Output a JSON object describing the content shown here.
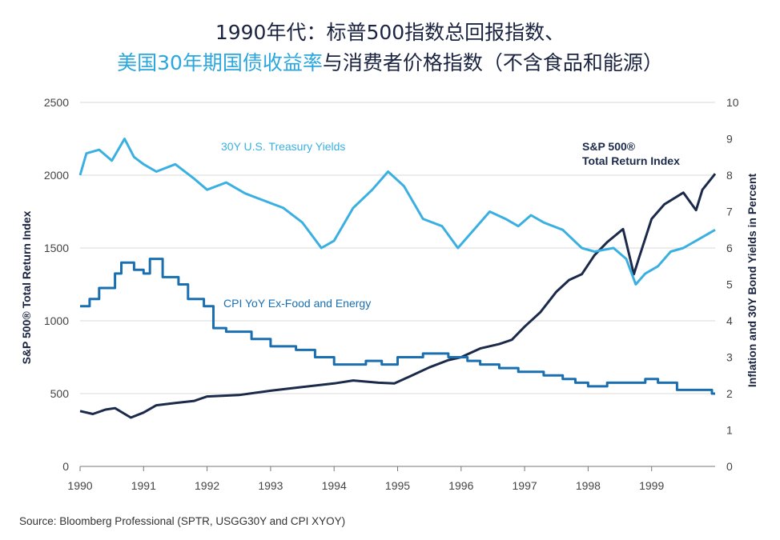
{
  "title_line1": "1990年代：标普500指数总回报指数、",
  "title_line2_highlight": "美国30年期国债收益率",
  "title_line2_rest": "与消费者价格指数（不含食品和能源）",
  "source": "Source: Bloomberg Professional (SPTR, USGG30Y and CPI XYOY)",
  "chart_data": {
    "type": "line",
    "x_label": "",
    "x_ticks": [
      "1990",
      "1991",
      "1992",
      "1993",
      "1994",
      "1995",
      "1996",
      "1997",
      "1998",
      "1999"
    ],
    "xlim": [
      1990,
      2000
    ],
    "y_left_label": "S&P 500® Total Return Index",
    "y_left_ticks": [
      "0",
      "500",
      "1000",
      "1500",
      "2000",
      "2500"
    ],
    "y_left_lim": [
      0,
      2500
    ],
    "y_right_label": "Inflation and 30Y Bond Yields in Percent",
    "y_right_ticks": [
      "0",
      "1",
      "2",
      "3",
      "4",
      "5",
      "6",
      "7",
      "8",
      "9",
      "10"
    ],
    "y_right_lim": [
      0,
      10
    ],
    "grid": "horizontal",
    "colors": {
      "sp500": "#1b2a4a",
      "treasury": "#3ab0e2",
      "cpi": "#1a6fb0",
      "grid": "#d9d9d9",
      "title": "#1a2340",
      "highlight": "#2aa7de"
    },
    "annotations": {
      "treasury": "30Y U.S. Treasury Yields",
      "cpi": "CPI YoY Ex-Food and Energy",
      "sp500_line1": "S&P 500®",
      "sp500_line2": "Total Return Index"
    },
    "series": [
      {
        "name": "S&P 500® Total Return Index",
        "axis": "left",
        "x": [
          1990.0,
          1990.2,
          1990.4,
          1990.55,
          1990.8,
          1991.0,
          1991.2,
          1991.5,
          1991.8,
          1992.0,
          1992.5,
          1993.0,
          1993.5,
          1994.0,
          1994.3,
          1994.7,
          1994.95,
          1995.2,
          1995.5,
          1995.8,
          1996.0,
          1996.3,
          1996.6,
          1996.8,
          1997.0,
          1997.25,
          1997.5,
          1997.7,
          1997.9,
          1998.1,
          1998.3,
          1998.55,
          1998.72,
          1998.8,
          1999.0,
          1999.2,
          1999.5,
          1999.7,
          1999.8,
          2000.0
        ],
        "y": [
          380,
          360,
          390,
          400,
          335,
          370,
          420,
          435,
          450,
          480,
          490,
          520,
          545,
          570,
          590,
          575,
          570,
          620,
          680,
          730,
          750,
          810,
          840,
          870,
          960,
          1060,
          1200,
          1280,
          1320,
          1450,
          1540,
          1630,
          1320,
          1430,
          1700,
          1800,
          1880,
          1760,
          1900,
          2010
        ]
      },
      {
        "name": "30Y U.S. Treasury Yields",
        "axis": "right",
        "x": [
          1990.0,
          1990.1,
          1990.3,
          1990.5,
          1990.7,
          1990.85,
          1991.0,
          1991.2,
          1991.5,
          1991.8,
          1992.0,
          1992.3,
          1992.6,
          1992.9,
          1993.2,
          1993.5,
          1993.8,
          1994.0,
          1994.3,
          1994.6,
          1994.85,
          1995.1,
          1995.4,
          1995.7,
          1995.95,
          1996.2,
          1996.45,
          1996.7,
          1996.9,
          1997.1,
          1997.3,
          1997.6,
          1997.9,
          1998.1,
          1998.4,
          1998.6,
          1998.75,
          1998.9,
          1999.1,
          1999.3,
          1999.5,
          1999.7,
          1999.9,
          2000.0
        ],
        "y": [
          8.0,
          8.6,
          8.7,
          8.4,
          9.0,
          8.5,
          8.3,
          8.1,
          8.3,
          7.9,
          7.6,
          7.8,
          7.5,
          7.3,
          7.1,
          6.7,
          6.0,
          6.2,
          7.1,
          7.6,
          8.1,
          7.7,
          6.8,
          6.6,
          6.0,
          6.5,
          7.0,
          6.8,
          6.6,
          6.9,
          6.7,
          6.5,
          6.0,
          5.9,
          6.0,
          5.7,
          5.0,
          5.3,
          5.5,
          5.9,
          6.0,
          6.2,
          6.4,
          6.5
        ]
      },
      {
        "name": "CPI YoY Ex-Food and Energy",
        "axis": "right",
        "step": true,
        "x": [
          1990.0,
          1990.15,
          1990.3,
          1990.55,
          1990.65,
          1990.85,
          1991.0,
          1991.1,
          1991.3,
          1991.55,
          1991.7,
          1991.95,
          1992.1,
          1992.3,
          1992.7,
          1993.0,
          1993.4,
          1993.7,
          1994.0,
          1994.2,
          1994.5,
          1994.75,
          1995.0,
          1995.4,
          1995.8,
          1996.1,
          1996.3,
          1996.6,
          1996.9,
          1997.1,
          1997.3,
          1997.6,
          1997.8,
          1998.0,
          1998.3,
          1998.6,
          1998.9,
          1999.1,
          1999.4,
          1999.7,
          1999.95,
          2000.0
        ],
        "y": [
          4.4,
          4.6,
          4.9,
          5.3,
          5.6,
          5.4,
          5.3,
          5.7,
          5.2,
          5.0,
          4.6,
          4.4,
          3.8,
          3.7,
          3.5,
          3.3,
          3.2,
          3.0,
          2.8,
          2.8,
          2.9,
          2.8,
          3.0,
          3.1,
          3.0,
          2.9,
          2.8,
          2.7,
          2.6,
          2.6,
          2.5,
          2.4,
          2.3,
          2.2,
          2.3,
          2.3,
          2.4,
          2.3,
          2.1,
          2.1,
          2.0,
          2.0
        ]
      }
    ]
  }
}
